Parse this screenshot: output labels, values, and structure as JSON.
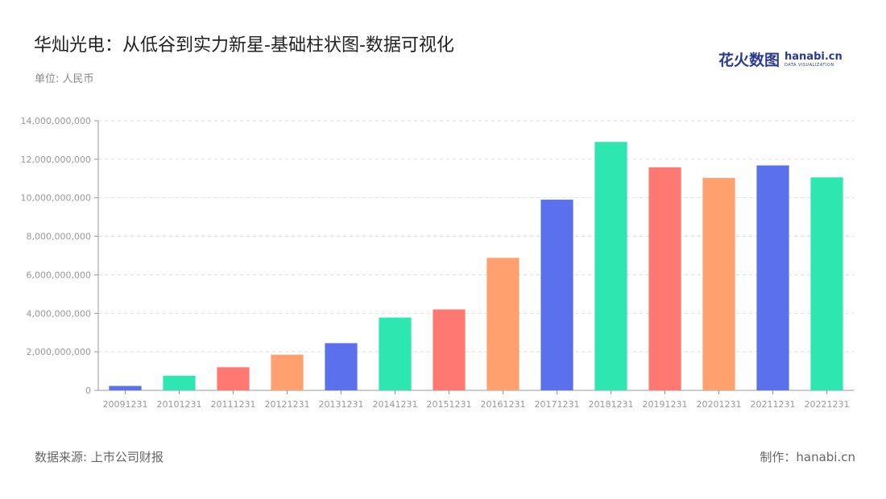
{
  "title": "华灿光电：从低谷到实力新星-基础柱状图-数据可视化",
  "unit": "单位: 人民币",
  "logo": {
    "cn": "花火数图",
    "en": "hanabi.cn",
    "sub": "DATA VISUALIZATION"
  },
  "footer": {
    "source": "数据来源: 上市公司财报",
    "credit": "制作：hanabi.cn"
  },
  "colors": [
    "#5b70ec",
    "#2ee6b0",
    "#ff7872",
    "#ffa06e"
  ],
  "chart_data": {
    "type": "bar",
    "categories": [
      "20091231",
      "20101231",
      "20111231",
      "20121231",
      "20131231",
      "20141231",
      "20151231",
      "20161231",
      "20171231",
      "20181231",
      "20191231",
      "20201231",
      "20211231",
      "20221231"
    ],
    "values": [
      230000000,
      760000000,
      1200000000,
      1850000000,
      2450000000,
      3780000000,
      4200000000,
      6880000000,
      9900000000,
      12900000000,
      11580000000,
      11030000000,
      11680000000,
      11060000000
    ],
    "ylim": [
      0,
      14000000000
    ],
    "yticks": [
      0,
      2000000000,
      4000000000,
      6000000000,
      8000000000,
      10000000000,
      12000000000,
      14000000000
    ],
    "ytick_labels": [
      "0",
      "2,000,000,000",
      "4,000,000,000",
      "6,000,000,000",
      "8,000,000,000",
      "10,000,000,000",
      "12,000,000,000",
      "14,000,000,000"
    ],
    "grid": true,
    "xlabel": "",
    "ylabel": ""
  }
}
